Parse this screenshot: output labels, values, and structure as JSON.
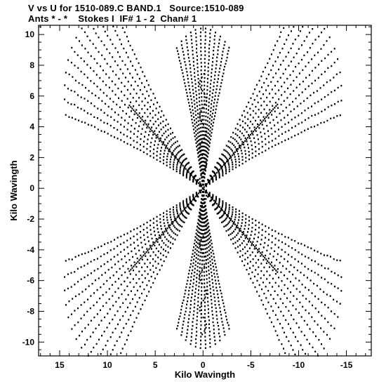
{
  "header": {
    "title_line1": "V vs U for 1510-089.C BAND.1   Source:1510-089",
    "title_line2": "Ants * - *    Stokes I  IF# 1 - 2  Chan# 1"
  },
  "chart_data": {
    "type": "scatter",
    "title": "V vs U for 1510-089.C BAND.1   Source:1510-089",
    "subtitle": "Ants * - *    Stokes I  IF# 1 - 2  Chan# 1",
    "xlabel": "Kilo Wavingth",
    "ylabel": "Kilo Wavingth",
    "xlim": [
      17.2,
      -17.6
    ],
    "ylim": [
      -10.9,
      10.6
    ],
    "x_reversed": true,
    "xticks": [
      15,
      10,
      5,
      0,
      -5,
      -10,
      -15
    ],
    "yticks": [
      -10,
      -8,
      -6,
      -4,
      -2,
      0,
      2,
      4,
      6,
      8,
      10
    ],
    "grid": false,
    "legend": "none",
    "point_color": "#000000",
    "description_of_distribution": "UV-coverage pattern: six-armed star of short elliptical track arcs with bright diagonal lines through the origin",
    "generation": {
      "arm_angles_deg": [
        90,
        35,
        -35
      ],
      "arm_length_kλ": [
        10.4,
        16.5,
        16.5
      ],
      "tracks_per_arm": 42,
      "points_per_track": 12,
      "track_half_angle_deg": 22
    }
  }
}
